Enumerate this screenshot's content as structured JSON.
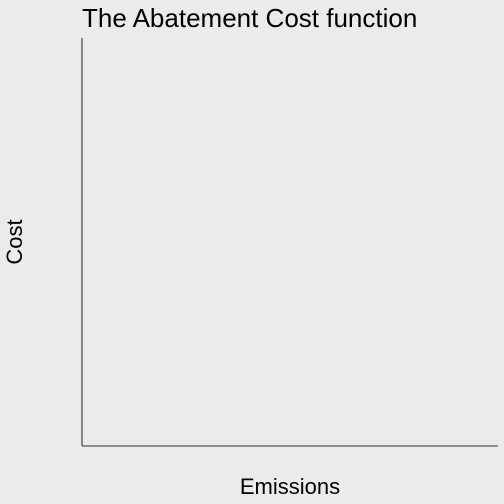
{
  "chart_data": {
    "type": "line",
    "title": "The Abatement Cost function",
    "xlabel": "Emissions",
    "ylabel": "Cost",
    "series": [],
    "grid": false,
    "legend": "none",
    "x_tick_labels": [],
    "y_tick_labels": []
  },
  "colors": {
    "panel_background": "#ebebeb",
    "axis_line": "#333333",
    "text": "#000000"
  }
}
